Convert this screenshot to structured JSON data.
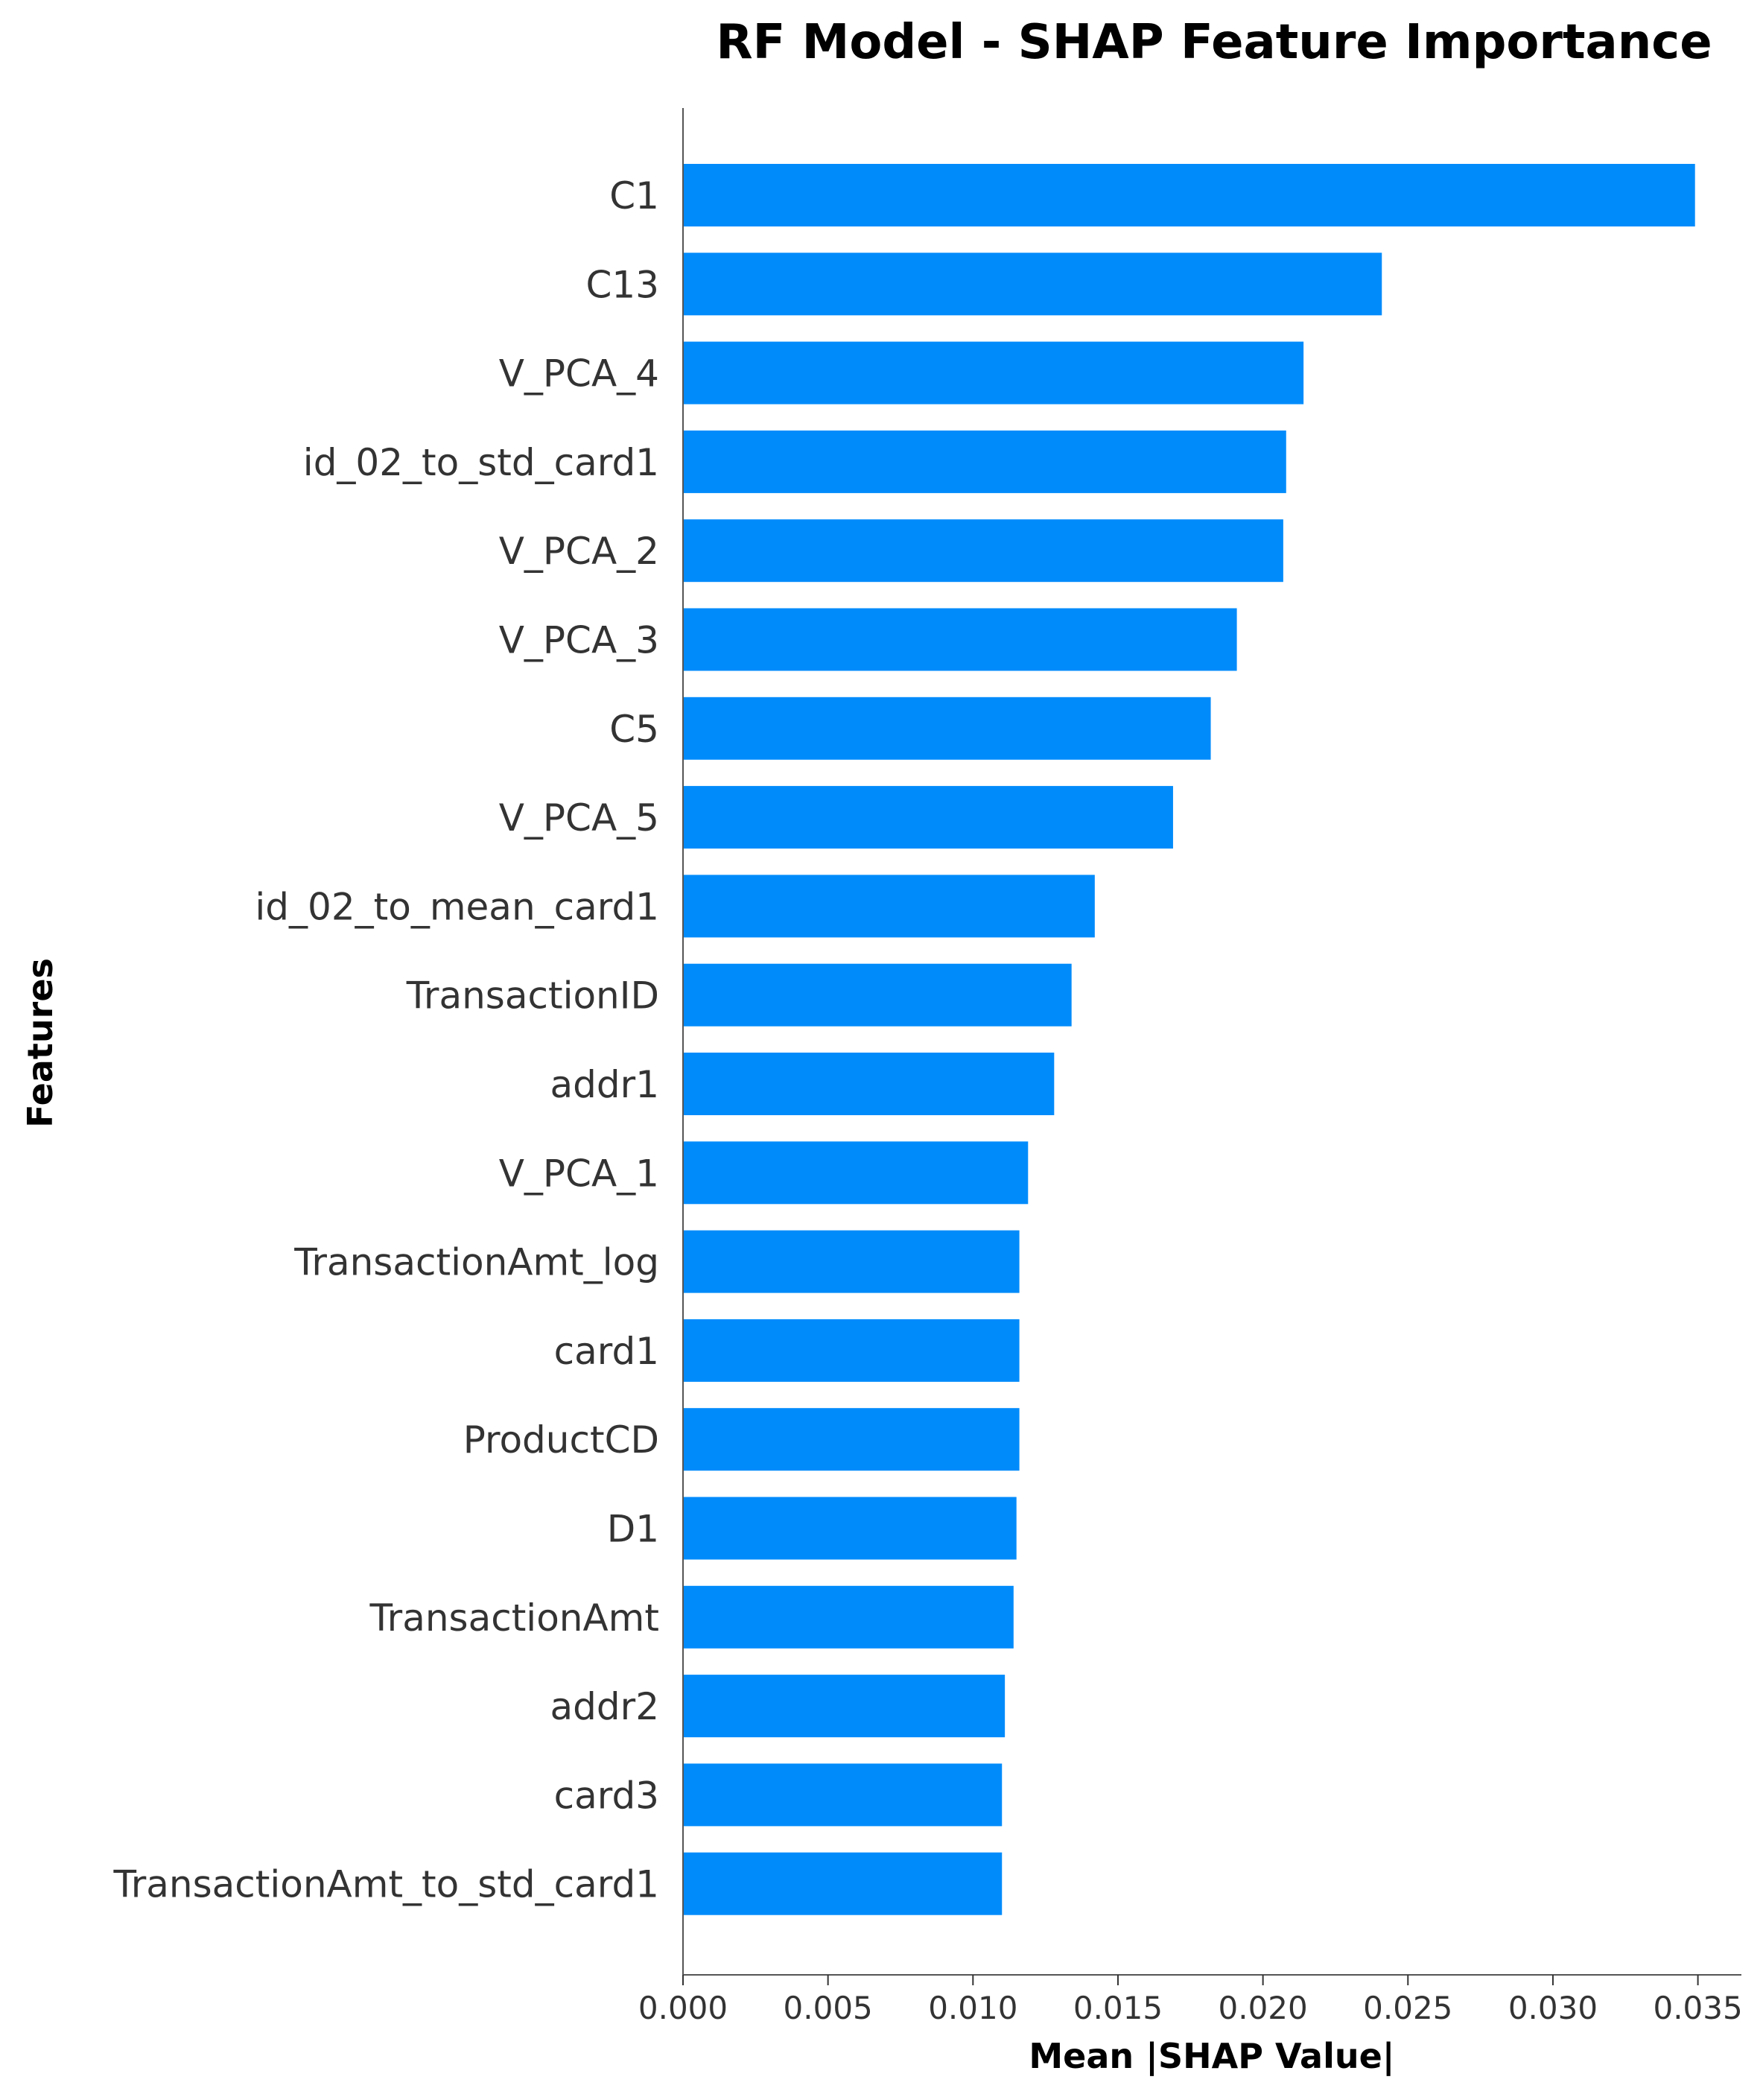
{
  "colors": {
    "bar": "#008bfb",
    "axis": "#555555",
    "text": "#333333"
  },
  "chart_data": {
    "type": "bar",
    "orientation": "horizontal",
    "title": "RF Model - SHAP Feature Importance",
    "xlabel": "Mean |SHAP Value|",
    "ylabel": "Features",
    "xlim": [
      0,
      0.0365
    ],
    "xticks": [
      0.0,
      0.005,
      0.01,
      0.015,
      0.02,
      0.025,
      0.03,
      0.035
    ],
    "xtick_labels": [
      "0.000",
      "0.005",
      "0.010",
      "0.015",
      "0.020",
      "0.025",
      "0.030",
      "0.035"
    ],
    "grid": false,
    "categories": [
      "C1",
      "C13",
      "V_PCA_4",
      "id_02_to_std_card1",
      "V_PCA_2",
      "V_PCA_3",
      "C5",
      "V_PCA_5",
      "id_02_to_mean_card1",
      "TransactionID",
      "addr1",
      "V_PCA_1",
      "TransactionAmt_log",
      "card1",
      "ProductCD",
      "D1",
      "TransactionAmt",
      "addr2",
      "card3",
      "TransactionAmt_to_std_card1"
    ],
    "values": [
      0.0349,
      0.0241,
      0.0214,
      0.0208,
      0.0207,
      0.0191,
      0.0182,
      0.0169,
      0.0142,
      0.0134,
      0.0128,
      0.0119,
      0.0116,
      0.0116,
      0.0116,
      0.0115,
      0.0114,
      0.0111,
      0.011,
      0.011
    ]
  }
}
